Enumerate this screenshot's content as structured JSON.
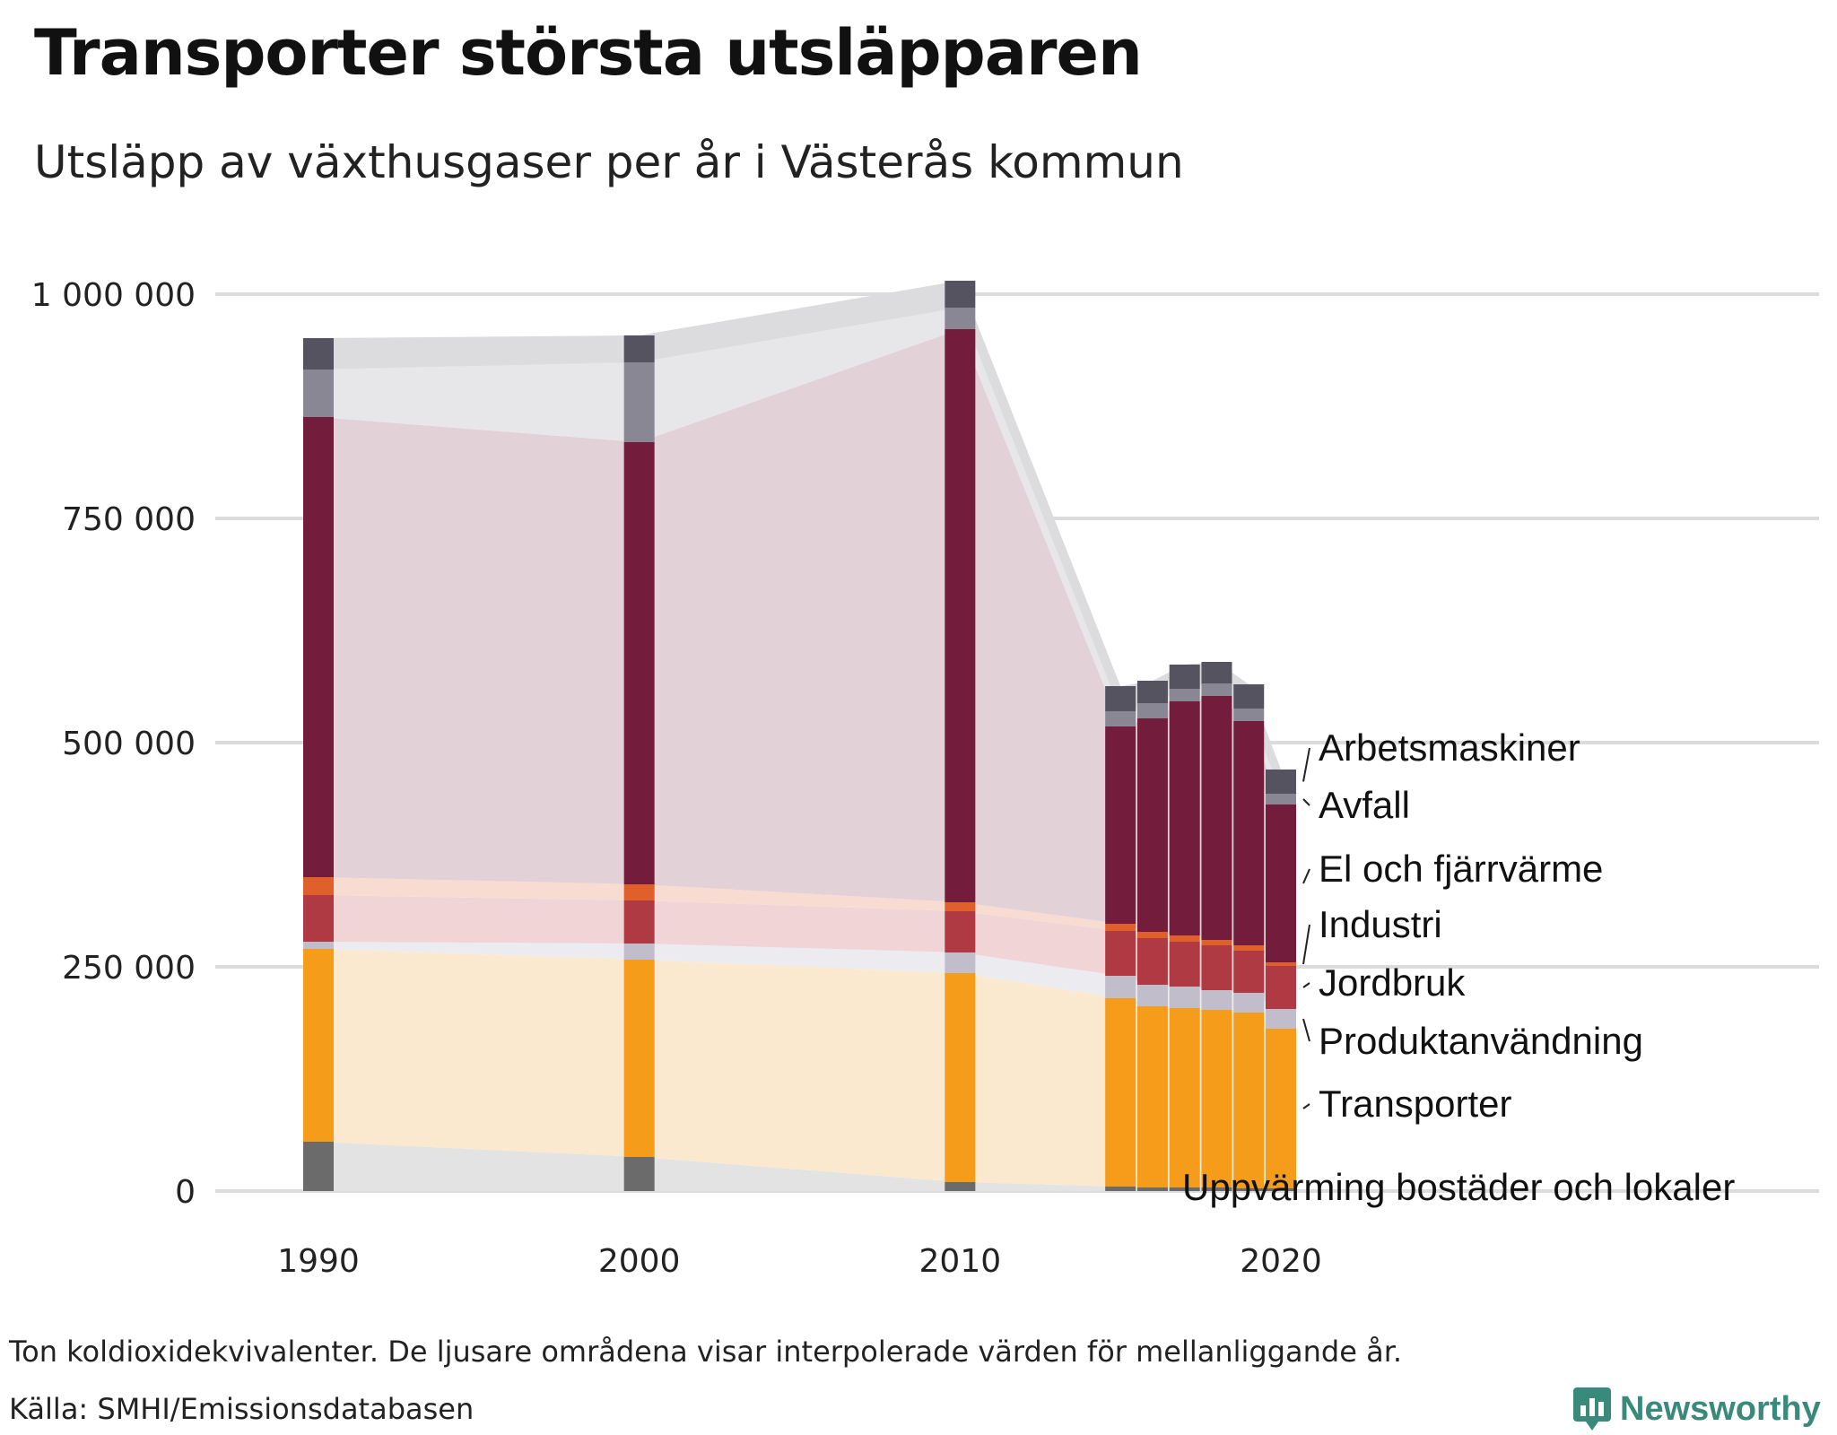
{
  "title": "Transporter största utsläpparen",
  "subtitle": "Utsläpp av växthusgaser per år i Västerås kommun",
  "footnote": "Ton koldioxidekvivalenter. De ljusare områdena visar interpolerade värden för mellanliggande år.",
  "source": "Källa: SMHI/Emissionsdatabasen",
  "brand": "Newsworthy",
  "chart_data": {
    "type": "bar",
    "stacked": true,
    "x": [
      1990,
      2000,
      2010,
      2015,
      2016,
      2017,
      2018,
      2019,
      2020
    ],
    "ylim": [
      0,
      1000000
    ],
    "yticks": [
      0,
      250000,
      500000,
      750000,
      1000000
    ],
    "ytick_labels": [
      "0",
      "250 000",
      "500 000",
      "750 000",
      "1 000 000"
    ],
    "xticks": [
      1990,
      2000,
      2010,
      2020
    ],
    "xtick_labels": [
      "1990",
      "2000",
      "2010",
      "2020"
    ],
    "grid": true,
    "interpolated_areas": true,
    "series": [
      {
        "name": "Uppvärming bostäder och lokaler",
        "color": "#6b6b6b",
        "area_color": "#e3e3e3",
        "values": [
          55000,
          38000,
          10000,
          5000,
          4000,
          4000,
          4000,
          3000,
          3000
        ]
      },
      {
        "name": "Transporter",
        "color": "#f59c1a",
        "area_color": "#fbe9cf",
        "values": [
          215000,
          220000,
          233000,
          210000,
          202000,
          200000,
          198000,
          196000,
          178000
        ]
      },
      {
        "name": "Produktanvändning",
        "color": "#c2bdca",
        "area_color": "#ecebef",
        "values": [
          8000,
          18000,
          23000,
          25000,
          24000,
          24000,
          22000,
          22000,
          22000
        ]
      },
      {
        "name": "Jordbruk",
        "color": "#b03a44",
        "area_color": "#f0d4d6",
        "values": [
          52000,
          48000,
          46000,
          50000,
          52000,
          50000,
          50000,
          47000,
          48000
        ]
      },
      {
        "name": "Industri",
        "color": "#e0602c",
        "area_color": "#f8dcd2",
        "values": [
          20000,
          18000,
          10000,
          8000,
          7000,
          7000,
          6000,
          6000,
          4000
        ]
      },
      {
        "name": "El och fjärrvärme",
        "color": "#741c3c",
        "area_color": "#e2d2d8",
        "values": [
          513000,
          493000,
          639000,
          220000,
          238000,
          261000,
          272000,
          250000,
          176000
        ]
      },
      {
        "name": "Avfall",
        "color": "#8a8794",
        "area_color": "#e7e7ea",
        "values": [
          53000,
          89000,
          24000,
          17000,
          17000,
          14000,
          14000,
          14000,
          12000
        ]
      },
      {
        "name": "Arbetsmaskiner",
        "color": "#55535f",
        "area_color": "#dcdcde",
        "values": [
          35000,
          30000,
          30000,
          28000,
          25000,
          27000,
          24000,
          27000,
          27000
        ]
      }
    ]
  }
}
